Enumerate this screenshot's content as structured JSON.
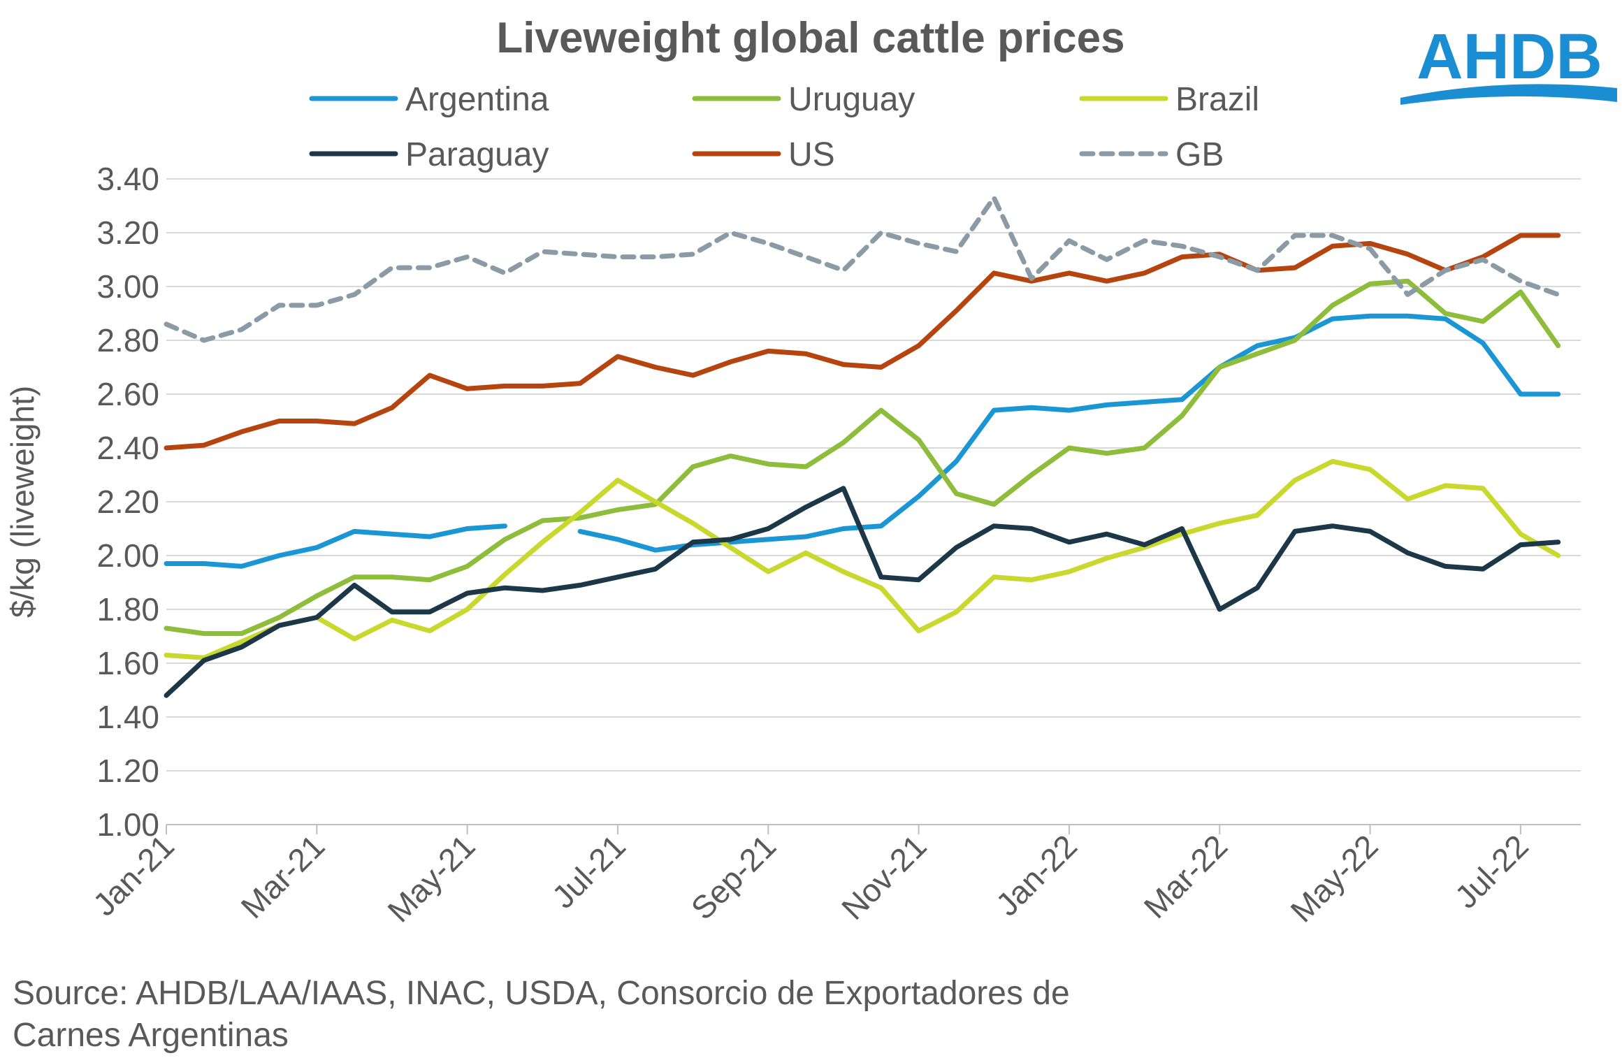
{
  "chart_data": {
    "type": "line",
    "title": "Liveweight global cattle prices",
    "y_label": "$/kg (liveweight)",
    "source": [
      "Source: AHDB/LAA/IAAS, INAC, USDA, Consorcio de Exportadores de",
      "Carnes Argentinas"
    ],
    "logo": "AHDB",
    "categories": [
      "Jan-21",
      null,
      null,
      null,
      "Mar-21",
      null,
      null,
      null,
      "May-21",
      null,
      null,
      null,
      "Jul-21",
      null,
      null,
      null,
      "Sep-21",
      null,
      null,
      null,
      "Nov-21",
      null,
      null,
      null,
      "Jan-22",
      null,
      null,
      null,
      "Mar-22",
      null,
      null,
      null,
      "May-22",
      null,
      null,
      null,
      "Jul-22",
      null
    ],
    "ylim": [
      1.0,
      3.4
    ],
    "yticks": [
      {
        "value": 1.0,
        "label": "1.00"
      },
      {
        "value": 1.2,
        "label": "1.20"
      },
      {
        "value": 1.4,
        "label": "1.40"
      },
      {
        "value": 1.6,
        "label": "1.60"
      },
      {
        "value": 1.8,
        "label": "1.80"
      },
      {
        "value": 2.0,
        "label": "2.00"
      },
      {
        "value": 2.2,
        "label": "2.20"
      },
      {
        "value": 2.4,
        "label": "2.40"
      },
      {
        "value": 2.6,
        "label": "2.60"
      },
      {
        "value": 2.8,
        "label": "2.80"
      },
      {
        "value": 3.0,
        "label": "3.00"
      },
      {
        "value": 3.2,
        "label": "3.20"
      },
      {
        "value": 3.4,
        "label": "3.40"
      }
    ],
    "grid": true,
    "legend": "top",
    "series": [
      {
        "name": "Argentina",
        "color": "#1b96d4",
        "style": "solid",
        "values": [
          1.97,
          1.97,
          1.96,
          2.0,
          2.03,
          2.09,
          2.08,
          2.07,
          2.1,
          2.11,
          null,
          2.09,
          2.06,
          2.02,
          2.04,
          2.05,
          2.06,
          2.07,
          2.1,
          2.11,
          2.22,
          2.35,
          2.54,
          2.55,
          2.54,
          2.56,
          2.57,
          2.58,
          2.7,
          2.78,
          2.81,
          2.88,
          2.89,
          2.89,
          2.88,
          2.79,
          2.6,
          2.6
        ]
      },
      {
        "name": "Uruguay",
        "color": "#8dbd3a",
        "style": "solid",
        "values": [
          1.73,
          1.71,
          1.71,
          1.77,
          1.85,
          1.92,
          1.92,
          1.91,
          1.96,
          2.06,
          2.13,
          2.14,
          2.17,
          2.19,
          2.33,
          2.37,
          2.34,
          2.33,
          2.42,
          2.54,
          2.43,
          2.23,
          2.19,
          2.3,
          2.4,
          2.38,
          2.4,
          2.52,
          2.7,
          2.75,
          2.8,
          2.93,
          3.01,
          3.02,
          2.9,
          2.87,
          2.98,
          2.78
        ]
      },
      {
        "name": "Brazil",
        "color": "#c9d82c",
        "style": "solid",
        "values": [
          1.63,
          1.62,
          1.68,
          1.74,
          1.77,
          1.69,
          1.76,
          1.72,
          1.8,
          1.93,
          2.05,
          2.16,
          2.28,
          2.2,
          2.12,
          2.03,
          1.94,
          2.01,
          1.94,
          1.88,
          1.72,
          1.79,
          1.92,
          1.91,
          1.94,
          1.99,
          2.03,
          2.08,
          2.12,
          2.15,
          2.28,
          2.35,
          2.32,
          2.21,
          2.26,
          2.25,
          2.08,
          2.0
        ]
      },
      {
        "name": "Paraguay",
        "color": "#1c3747",
        "style": "solid",
        "values": [
          1.48,
          1.61,
          1.66,
          1.74,
          1.77,
          1.89,
          1.79,
          1.79,
          1.86,
          1.88,
          1.87,
          1.89,
          1.92,
          1.95,
          2.05,
          2.06,
          2.1,
          2.18,
          2.25,
          1.92,
          1.91,
          2.03,
          2.11,
          2.1,
          2.05,
          2.08,
          2.04,
          2.1,
          1.8,
          1.88,
          2.09,
          2.11,
          2.09,
          2.01,
          1.96,
          1.95,
          2.04,
          2.05
        ]
      },
      {
        "name": "US",
        "color": "#b5440f",
        "style": "solid",
        "values": [
          2.4,
          2.41,
          2.46,
          2.5,
          2.5,
          2.49,
          2.55,
          2.67,
          2.62,
          2.63,
          2.63,
          2.64,
          2.74,
          2.7,
          2.67,
          2.72,
          2.76,
          2.75,
          2.71,
          2.7,
          2.78,
          2.91,
          3.05,
          3.02,
          3.05,
          3.02,
          3.05,
          3.11,
          3.12,
          3.06,
          3.07,
          3.15,
          3.16,
          3.12,
          3.06,
          3.11,
          3.19,
          3.19
        ]
      },
      {
        "name": "GB",
        "color": "#8a9ba6",
        "style": "dashed",
        "values": [
          2.86,
          2.8,
          2.84,
          2.93,
          2.93,
          2.97,
          3.07,
          3.07,
          3.11,
          3.05,
          3.13,
          3.12,
          3.11,
          3.11,
          3.12,
          3.2,
          3.16,
          3.11,
          3.06,
          3.2,
          3.16,
          3.13,
          3.33,
          3.03,
          3.17,
          3.1,
          3.17,
          3.15,
          3.11,
          3.06,
          3.19,
          3.19,
          3.14,
          2.97,
          3.06,
          3.1,
          3.02,
          2.97
        ]
      }
    ]
  }
}
